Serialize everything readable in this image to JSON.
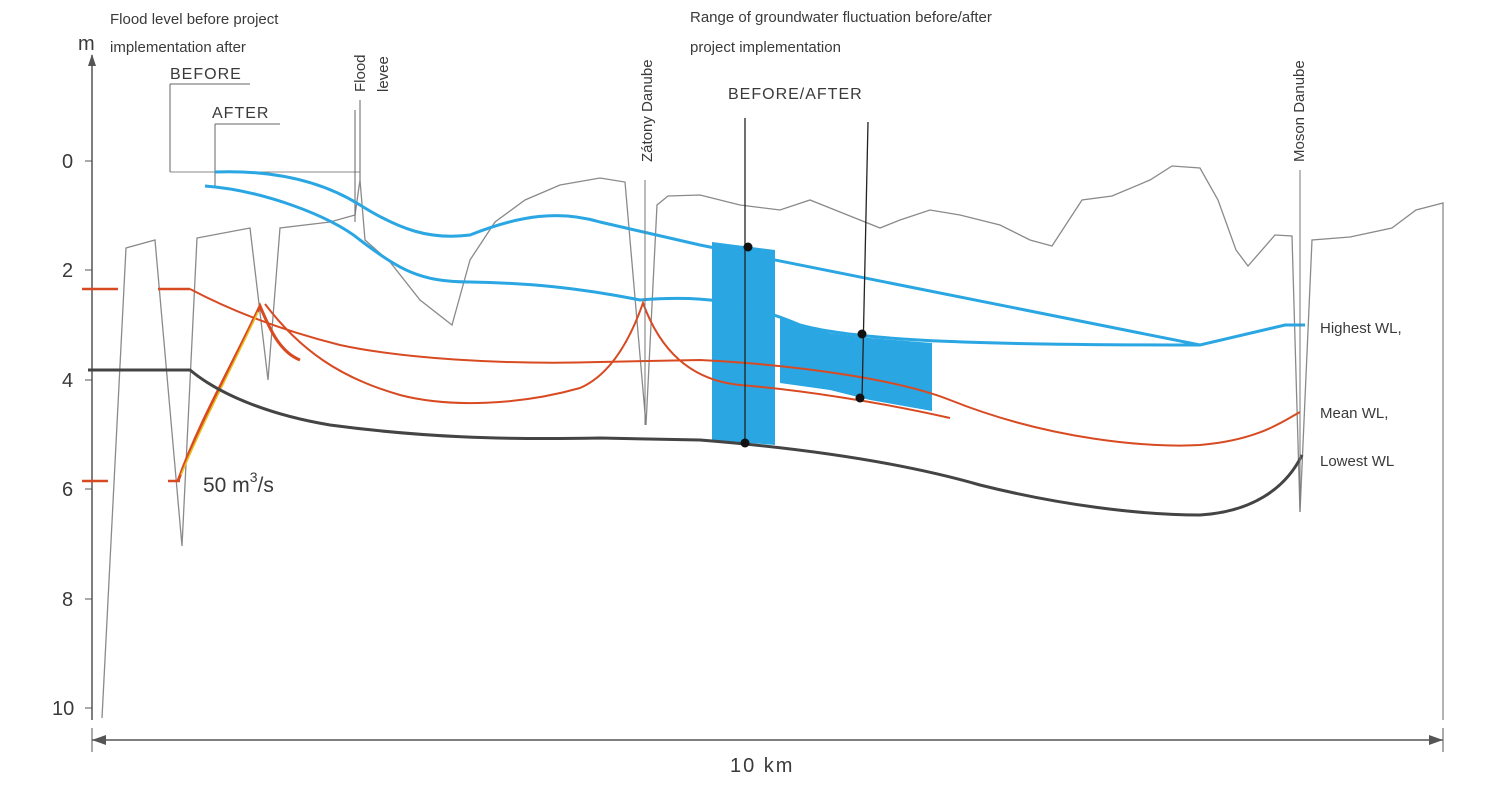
{
  "chart_data": {
    "type": "line",
    "y_axis": {
      "unit": "m",
      "ticks": [
        "0",
        "2",
        "4",
        "6",
        "8",
        "10"
      ],
      "ylim": [
        0,
        10
      ],
      "inverted": true
    },
    "x_axis": {
      "scale_label": "10 km",
      "xlim_km": [
        0,
        10
      ]
    },
    "series": [
      {
        "name": "Highest WL,",
        "color": "#2aa6e3",
        "x": [
          0.9,
          1.5,
          2.0,
          2.5,
          3.0,
          3.3,
          3.6,
          4.0,
          4.5,
          5.0,
          5.5,
          6.0,
          6.5,
          7.0,
          7.5,
          8.0,
          8.5,
          9.0,
          9.5,
          10.0
        ],
        "y": [
          0.2,
          0.3,
          0.55,
          1.0,
          1.4,
          1.4,
          1.15,
          1.0,
          1.1,
          1.3,
          1.5,
          1.65,
          1.85,
          2.05,
          2.3,
          2.55,
          2.75,
          3.0,
          3.3,
          3.0
        ]
      },
      {
        "name": "Mean WL,",
        "color": "#d84a22",
        "x": [
          0.0,
          0.7,
          1.0,
          1.5,
          2.0,
          2.5,
          3.0,
          3.5,
          4.0,
          4.5,
          5.0,
          5.5,
          6.0,
          6.5,
          7.0,
          7.5,
          8.0,
          8.5,
          9.0,
          9.5,
          10.0
        ],
        "y": [
          2.4,
          2.4,
          2.8,
          3.05,
          3.4,
          3.6,
          3.75,
          3.75,
          3.7,
          3.7,
          3.7,
          3.75,
          3.9,
          4.05,
          4.25,
          4.6,
          4.95,
          5.25,
          5.25,
          5.05,
          4.6
        ]
      },
      {
        "name": "Lowest WL",
        "color": "#444444",
        "x": [
          0.0,
          0.7,
          1.0,
          1.5,
          2.0,
          2.5,
          3.0,
          3.5,
          4.0,
          4.5,
          5.0,
          5.5,
          6.0,
          6.5,
          7.0,
          7.5,
          8.0,
          8.5,
          9.0,
          9.5,
          10.0
        ],
        "y": [
          3.85,
          3.85,
          4.3,
          4.65,
          4.85,
          4.95,
          5.05,
          5.1,
          5.1,
          5.1,
          5.15,
          5.2,
          5.3,
          5.55,
          5.8,
          6.1,
          6.35,
          6.45,
          6.5,
          6.3,
          5.45
        ]
      }
    ],
    "shaded_range": {
      "x": [
        4.5,
        6.3
      ],
      "color": "#2aa6e3"
    }
  },
  "labels": {
    "axis_unit": "m",
    "scale": "10 km",
    "flood_note_line1": "Flood level before project",
    "flood_note_line2": "implementation after",
    "before": "BEFORE",
    "after": "AFTER",
    "flood_levee_line1": "Flood",
    "flood_levee_line2": "levee",
    "zatony": "Zátony Danube",
    "range_note_line1": "Range of groundwater fluctuation before/after",
    "range_note_line2": "project implementation",
    "before_after": "BEFORE/AFTER",
    "moson": "Moson Danube",
    "discharge": "50 m",
    "discharge_exp": "3",
    "discharge_unit": "/s",
    "highest": "Highest WL,",
    "mean": "Mean WL,",
    "lowest": "Lowest WL"
  }
}
